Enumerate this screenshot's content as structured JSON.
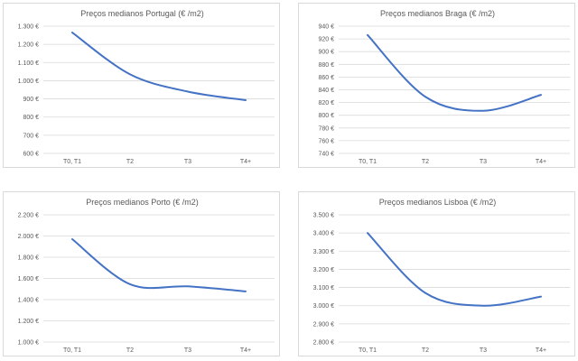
{
  "colors": {
    "series": "#4472c4",
    "grid": "#d9d9d9",
    "text": "#595959"
  },
  "chart_data": [
    {
      "type": "line",
      "title": "Preços medianos Portugal (€ /m2)",
      "categories": [
        "T0, T1",
        "T2",
        "T3",
        "T4+"
      ],
      "values": [
        1265,
        1035,
        940,
        893
      ],
      "ylim": [
        600,
        1300
      ],
      "yticks": [
        600,
        700,
        800,
        900,
        1000,
        1100,
        1200,
        1300
      ],
      "ytick_labels": [
        "600 €",
        "700 €",
        "800 €",
        "900 €",
        "1.000 €",
        "1.100 €",
        "1.200 €",
        "1.300 €"
      ],
      "grid": true
    },
    {
      "type": "line",
      "title": "Preços medianos Braga (€ /m2)",
      "categories": [
        "T0, T1",
        "T2",
        "T3",
        "T4+"
      ],
      "values": [
        926,
        829,
        807,
        832
      ],
      "ylim": [
        740,
        940
      ],
      "yticks": [
        740,
        760,
        780,
        800,
        820,
        840,
        860,
        880,
        900,
        920,
        940
      ],
      "ytick_labels": [
        "740 €",
        "760 €",
        "780 €",
        "800 €",
        "820 €",
        "840 €",
        "860 €",
        "880 €",
        "900 €",
        "920 €",
        "940 €"
      ],
      "grid": true
    },
    {
      "type": "line",
      "title": "Preços medianos Porto (€ /m2)",
      "categories": [
        "T0, T1",
        "T2",
        "T3",
        "T4+"
      ],
      "values": [
        1970,
        1545,
        1525,
        1478
      ],
      "ylim": [
        1000,
        2200
      ],
      "yticks": [
        1000,
        1200,
        1400,
        1600,
        1800,
        2000,
        2200
      ],
      "ytick_labels": [
        "1.000 €",
        "1.200 €",
        "1.400 €",
        "1.600 €",
        "1.800 €",
        "2.000 €",
        "2.200 €"
      ],
      "grid": true
    },
    {
      "type": "line",
      "title": "Preços medianos Lisboa (€ /m2)",
      "categories": [
        "T0, T1",
        "T2",
        "T3",
        "T4+"
      ],
      "values": [
        3400,
        3070,
        3000,
        3050
      ],
      "ylim": [
        2800,
        3500
      ],
      "yticks": [
        2800,
        2900,
        3000,
        3100,
        3200,
        3300,
        3400,
        3500
      ],
      "ytick_labels": [
        "2.800 €",
        "2.900 €",
        "3.000 €",
        "3.100 €",
        "3.200 €",
        "3.300 €",
        "3.400 €",
        "3.500 €"
      ],
      "grid": true
    }
  ]
}
